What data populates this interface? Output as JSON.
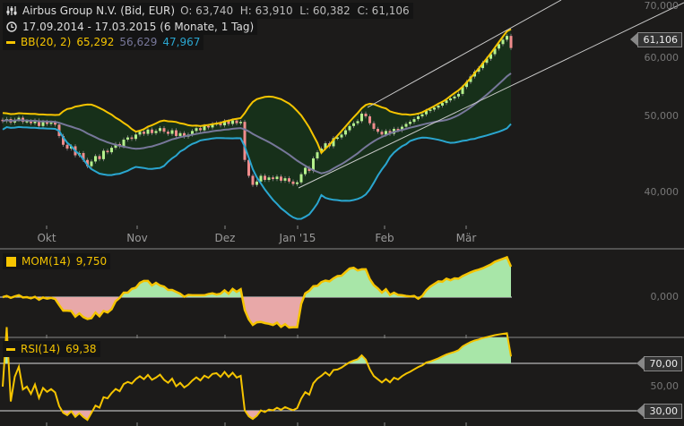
{
  "header": {
    "instrument": "Airbus Group N.V. (Bid, EUR)",
    "ohlc": "O: 63,740  H: 63,910  L: 60,382  C: 61,106",
    "period": "17.09.2014 - 17.03.2015 (6 Monate, 1 Tag)",
    "bb_label": "BB(20, 2)",
    "bb_upper": "65,292",
    "bb_mid": "56,629",
    "bb_lower": "47,967"
  },
  "mom": {
    "label": "MOM(14)",
    "value": "9,750"
  },
  "rsi": {
    "label": "RSI(14)",
    "value": "69,38"
  },
  "price_axis": {
    "ticks": [
      "70,000",
      "60,000",
      "50,000",
      "40,000"
    ],
    "last_price_tag": "61,106",
    "scale": "log"
  },
  "mom_axis": {
    "ticks": [
      "0,000"
    ]
  },
  "rsi_axis": {
    "ticks": [
      "70,00",
      "50,00",
      "30,00"
    ]
  },
  "x_axis": {
    "labels": [
      "Okt",
      "Nov",
      "Dez",
      "Jan '15",
      "Feb",
      "Mär"
    ]
  },
  "colors": {
    "background": "#1c1b1a",
    "bb_upper": "#f5c400",
    "bb_mid": "#77779a",
    "bb_lower": "#2aa6d0",
    "bb_fill": "#17301a",
    "candle_up": "#b4f08c",
    "candle_down": "#f08c8c",
    "mom_line": "#f5c400",
    "mom_pos_fill": "#a8e6a8",
    "mom_neg_fill": "#e8a8a8"
  },
  "chart_data": {
    "type": "candlestick",
    "x_start": "17.09.2014",
    "x_end": "17.03.2015",
    "closes": [
      49.3,
      49.6,
      49.1,
      49.5,
      49.8,
      49.2,
      49.3,
      49.0,
      49.4,
      48.6,
      49.2,
      48.9,
      49.1,
      48.8,
      47.2,
      46.0,
      45.5,
      45.8,
      44.6,
      44.9,
      44.0,
      43.2,
      43.8,
      44.5,
      44.1,
      45.2,
      45.0,
      45.6,
      46.1,
      45.8,
      46.7,
      47.0,
      46.8,
      47.4,
      47.8,
      47.5,
      48.1,
      47.6,
      47.9,
      48.3,
      47.8,
      47.5,
      48.0,
      47.2,
      47.6,
      47.1,
      47.4,
      47.9,
      48.3,
      48.0,
      48.6,
      48.4,
      48.9,
      49.0,
      48.7,
      49.3,
      48.9,
      49.4,
      49.0,
      49.2,
      44.0,
      42.0,
      40.9,
      41.3,
      42.0,
      41.5,
      41.8,
      41.6,
      41.9,
      41.4,
      41.7,
      41.3,
      41.0,
      41.2,
      42.2,
      43.0,
      42.6,
      44.2,
      45.0,
      45.5,
      46.2,
      45.8,
      46.9,
      47.0,
      47.4,
      48.0,
      48.6,
      49.0,
      49.3,
      50.4,
      50.0,
      49.0,
      48.2,
      47.8,
      47.4,
      47.9,
      47.5,
      48.2,
      48.0,
      48.5,
      48.9,
      49.2,
      49.6,
      50.0,
      50.3,
      50.8,
      51.0,
      51.3,
      51.6,
      52.0,
      52.4,
      52.7,
      53.0,
      53.4,
      54.5,
      55.3,
      56.2,
      57.0,
      57.6,
      58.5,
      59.2,
      60.0,
      61.0,
      61.8,
      62.6,
      63.3,
      61.1
    ]
  }
}
